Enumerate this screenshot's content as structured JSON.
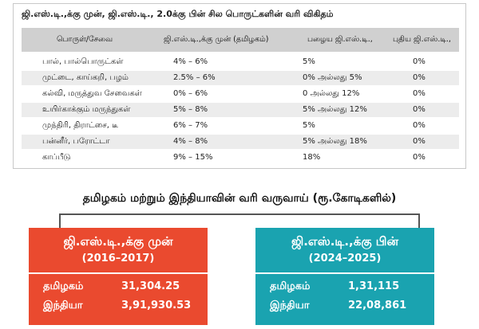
{
  "table": {
    "title": "ஜி.எஸ்.டி.,க்கு முன், ஜி.எஸ்.டி., 2.0க்கு பின் சில பொருட்களின் வரி விகிதம்",
    "headers": [
      "பொருள்/சேவை",
      "ஜி.எஸ்.டி.,க்கு முன் (தமிழகம்)",
      "பழைய ஜி.எஸ்.டி.,",
      "புதிய ஜி.எஸ்.டி.,"
    ],
    "rows": [
      [
        "பால், பால்பொருட்கள்",
        "4% – 6%",
        "5%",
        "0%"
      ],
      [
        "முட்டை, காய்கறி, பழம்",
        "2.5% – 6%",
        "0% அல்லது 5%",
        "0%"
      ],
      [
        "கல்வி, மருத்துவ சேவைகள்",
        "0% – 6%",
        "0 அல்லது 12%",
        "0%"
      ],
      [
        "உயிர்காக்கும் மருந்துகள்",
        "5% – 8%",
        "5% அல்லது 12%",
        "0%"
      ],
      [
        "முந்திரி, திராட்சை, டீ",
        "6% – 7%",
        "5%",
        "0%"
      ],
      [
        "பன்னீர், பரோட்டா",
        "4% – 8%",
        "5% அல்லது 18%",
        "0%"
      ],
      [
        "காப்பீடு",
        "9% – 15%",
        "18%",
        "0%"
      ]
    ]
  },
  "revenue": {
    "title": "தமிழகம் மற்றும் இந்தியாவின் வரி வருவாய் (ரூ.கோடிகளில்)",
    "before": {
      "title": "ஜி.எஸ்.டி.,க்கு முன்",
      "years": "(2016–2017)",
      "items": [
        {
          "name": "தமிழகம்",
          "value": "31,304.25"
        },
        {
          "name": "இந்தியா",
          "value": "3,91,930.53"
        }
      ],
      "color": "#ea4a2f"
    },
    "after": {
      "title": "ஜி.எஸ்.டி.,க்கு பின்",
      "years": "(2024–2025)",
      "items": [
        {
          "name": "தமிழகம்",
          "value": "1,31,115"
        },
        {
          "name": "இந்தியா",
          "value": "22,08,861"
        }
      ],
      "color": "#1aa3b0"
    }
  }
}
